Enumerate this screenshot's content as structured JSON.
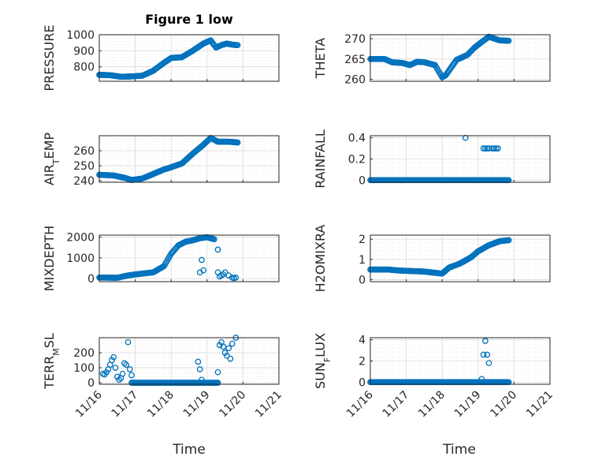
{
  "figure": {
    "title": "Figure 1 low",
    "marker_color": "#0072BD"
  },
  "xaxis": {
    "label": "Time",
    "ticks": [
      16,
      17,
      18,
      19,
      20,
      21
    ],
    "tick_labels": [
      "11/16",
      "11/17",
      "11/18",
      "11/19",
      "11/20",
      "11/21"
    ],
    "range": [
      16,
      21
    ]
  },
  "chart_data": [
    {
      "type": "scatter",
      "id": "pressure",
      "title": "Figure 1 low",
      "xlabel": "",
      "ylabel": "PRESSURE",
      "ylim": [
        710,
        1000
      ],
      "yticks": [
        800,
        900,
        1000
      ],
      "ytick_labels": [
        "800",
        "900",
        "1000"
      ],
      "grid": true,
      "minor_grid": true,
      "xtick_labels_visible": false,
      "series": [
        {
          "knots": [
            [
              16.0,
              750
            ],
            [
              16.3,
              748
            ],
            [
              16.6,
              738
            ],
            [
              16.9,
              740
            ],
            [
              17.2,
              745
            ],
            [
              17.5,
              775
            ],
            [
              17.8,
              825
            ],
            [
              18.0,
              855
            ],
            [
              18.3,
              860
            ],
            [
              18.6,
              900
            ],
            [
              18.9,
              945
            ],
            [
              19.1,
              965
            ],
            [
              19.25,
              920
            ],
            [
              19.4,
              935
            ],
            [
              19.55,
              945
            ],
            [
              19.7,
              938
            ],
            [
              19.85,
              935
            ]
          ]
        }
      ]
    },
    {
      "type": "scatter",
      "id": "theta",
      "title": "",
      "xlabel": "",
      "ylabel": "THETA",
      "ylim": [
        259.5,
        271
      ],
      "yticks": [
        260,
        265,
        270
      ],
      "ytick_labels": [
        "260",
        "265",
        "270"
      ],
      "grid": true,
      "minor_grid": true,
      "xtick_labels_visible": false,
      "series": [
        {
          "knots": [
            [
              16.0,
              265
            ],
            [
              16.4,
              265
            ],
            [
              16.6,
              264.2
            ],
            [
              16.9,
              264
            ],
            [
              17.1,
              263.5
            ],
            [
              17.3,
              264.3
            ],
            [
              17.5,
              264.2
            ],
            [
              17.8,
              263.5
            ],
            [
              18.0,
              260.5
            ],
            [
              18.1,
              261
            ],
            [
              18.4,
              264.8
            ],
            [
              18.7,
              266
            ],
            [
              18.9,
              267.8
            ],
            [
              19.1,
              269.2
            ],
            [
              19.3,
              270.5
            ],
            [
              19.6,
              269.6
            ],
            [
              19.85,
              269.5
            ]
          ]
        }
      ]
    },
    {
      "type": "scatter",
      "id": "airtemp",
      "title": "",
      "xlabel": "",
      "ylabel": "AIR_TEMP",
      "ylim": [
        239,
        270
      ],
      "yticks": [
        240,
        250,
        260
      ],
      "ytick_labels": [
        "240",
        "250",
        "260"
      ],
      "grid": true,
      "minor_grid": true,
      "xtick_labels_visible": false,
      "series": [
        {
          "knots": [
            [
              16.0,
              244
            ],
            [
              16.4,
              243.5
            ],
            [
              16.7,
              242
            ],
            [
              16.9,
              240.5
            ],
            [
              17.2,
              241.5
            ],
            [
              17.5,
              244.5
            ],
            [
              17.8,
              247.5
            ],
            [
              18.0,
              249
            ],
            [
              18.3,
              251.5
            ],
            [
              18.6,
              258
            ],
            [
              18.9,
              264
            ],
            [
              19.1,
              268.5
            ],
            [
              19.3,
              266
            ],
            [
              19.6,
              266
            ],
            [
              19.85,
              265.5
            ]
          ]
        }
      ]
    },
    {
      "type": "scatter",
      "id": "rainfall",
      "title": "",
      "xlabel": "",
      "ylabel": "RAINFALL",
      "ylim": [
        -0.02,
        0.42
      ],
      "yticks": [
        0,
        0.2,
        0.4
      ],
      "ytick_labels": [
        "0",
        "0.2",
        "0.4"
      ],
      "grid": true,
      "minor_grid": true,
      "xtick_labels_visible": false,
      "series": [
        {
          "knots": [
            [
              16.0,
              0
            ],
            [
              19.85,
              0
            ]
          ],
          "extra": [
            [
              18.65,
              0.4
            ],
            [
              19.15,
              0.3
            ],
            [
              19.2,
              0.3
            ],
            [
              19.25,
              0.3
            ],
            [
              19.3,
              0.3
            ],
            [
              19.4,
              0.3
            ],
            [
              19.45,
              0.3
            ],
            [
              19.5,
              0.3
            ],
            [
              19.55,
              0.3
            ]
          ]
        }
      ]
    },
    {
      "type": "scatter",
      "id": "mixdepth",
      "title": "",
      "xlabel": "",
      "ylabel": "MIXDEPTH",
      "ylim": [
        -150,
        2100
      ],
      "yticks": [
        0,
        1000,
        2000
      ],
      "ytick_labels": [
        "0",
        "1000",
        "2000"
      ],
      "grid": true,
      "minor_grid": true,
      "xtick_labels_visible": false,
      "series": [
        {
          "knots": [
            [
              16.0,
              50
            ],
            [
              16.5,
              40
            ],
            [
              16.8,
              150
            ],
            [
              17.0,
              200
            ],
            [
              17.5,
              300
            ],
            [
              17.8,
              600
            ],
            [
              18.0,
              1200
            ],
            [
              18.2,
              1600
            ],
            [
              18.4,
              1780
            ],
            [
              18.6,
              1850
            ],
            [
              18.8,
              1950
            ],
            [
              19.0,
              2000
            ],
            [
              19.2,
              1900
            ]
          ],
          "extra": [
            [
              18.8,
              300
            ],
            [
              18.85,
              900
            ],
            [
              18.9,
              400
            ],
            [
              19.3,
              1400
            ],
            [
              19.3,
              300
            ],
            [
              19.35,
              100
            ],
            [
              19.4,
              150
            ],
            [
              19.45,
              200
            ],
            [
              19.5,
              300
            ],
            [
              19.6,
              150
            ],
            [
              19.7,
              50
            ],
            [
              19.75,
              20
            ],
            [
              19.8,
              50
            ]
          ]
        }
      ]
    },
    {
      "type": "scatter",
      "id": "h2omixra",
      "title": "",
      "xlabel": "",
      "ylabel": "H2OMIXRA",
      "ylim": [
        -0.1,
        2.2
      ],
      "yticks": [
        0,
        1,
        2
      ],
      "ytick_labels": [
        "0",
        "1",
        "2"
      ],
      "grid": true,
      "minor_grid": true,
      "xtick_labels_visible": false,
      "series": [
        {
          "knots": [
            [
              16.0,
              0.5
            ],
            [
              16.5,
              0.5
            ],
            [
              16.8,
              0.45
            ],
            [
              17.5,
              0.4
            ],
            [
              18.0,
              0.3
            ],
            [
              18.2,
              0.6
            ],
            [
              18.5,
              0.8
            ],
            [
              18.8,
              1.1
            ],
            [
              19.0,
              1.4
            ],
            [
              19.3,
              1.7
            ],
            [
              19.6,
              1.9
            ],
            [
              19.85,
              1.95
            ]
          ]
        }
      ]
    },
    {
      "type": "scatter",
      "id": "terrmsl",
      "title": "",
      "xlabel": "",
      "ylabel": "TERR_MSL",
      "ylim": [
        -10,
        300
      ],
      "yticks": [
        0,
        100,
        200
      ],
      "ytick_labels": [
        "0",
        "100",
        "200"
      ],
      "grid": true,
      "minor_grid": true,
      "xtick_labels_visible": true,
      "series": [
        {
          "knots": [
            [
              16.9,
              0
            ],
            [
              19.3,
              0
            ]
          ],
          "extra": [
            [
              16.1,
              60
            ],
            [
              16.15,
              55
            ],
            [
              16.2,
              70
            ],
            [
              16.25,
              90
            ],
            [
              16.3,
              120
            ],
            [
              16.35,
              150
            ],
            [
              16.4,
              170
            ],
            [
              16.45,
              100
            ],
            [
              16.5,
              40
            ],
            [
              16.55,
              20
            ],
            [
              16.6,
              30
            ],
            [
              16.65,
              60
            ],
            [
              16.7,
              130
            ],
            [
              16.75,
              120
            ],
            [
              16.8,
              270
            ],
            [
              16.85,
              90
            ],
            [
              16.9,
              50
            ],
            [
              18.75,
              140
            ],
            [
              18.8,
              90
            ],
            [
              18.85,
              20
            ],
            [
              19.3,
              70
            ],
            [
              19.35,
              250
            ],
            [
              19.4,
              270
            ],
            [
              19.45,
              240
            ],
            [
              19.5,
              200
            ],
            [
              19.55,
              180
            ],
            [
              19.6,
              230
            ],
            [
              19.65,
              160
            ],
            [
              19.7,
              260
            ],
            [
              19.8,
              300
            ]
          ]
        }
      ]
    },
    {
      "type": "scatter",
      "id": "sunflux",
      "title": "",
      "xlabel": "",
      "ylabel": "SUN_FLUX",
      "ylim": [
        -0.2,
        4.2
      ],
      "yticks": [
        0,
        2,
        4
      ],
      "ytick_labels": [
        "0",
        "2",
        "4"
      ],
      "grid": true,
      "minor_grid": true,
      "xtick_labels_visible": true,
      "series": [
        {
          "knots": [
            [
              16.0,
              0
            ],
            [
              19.85,
              0
            ]
          ],
          "extra": [
            [
              19.1,
              0.3
            ],
            [
              19.15,
              2.6
            ],
            [
              19.2,
              3.9
            ],
            [
              19.25,
              2.6
            ],
            [
              19.3,
              1.8
            ]
          ]
        }
      ]
    }
  ]
}
